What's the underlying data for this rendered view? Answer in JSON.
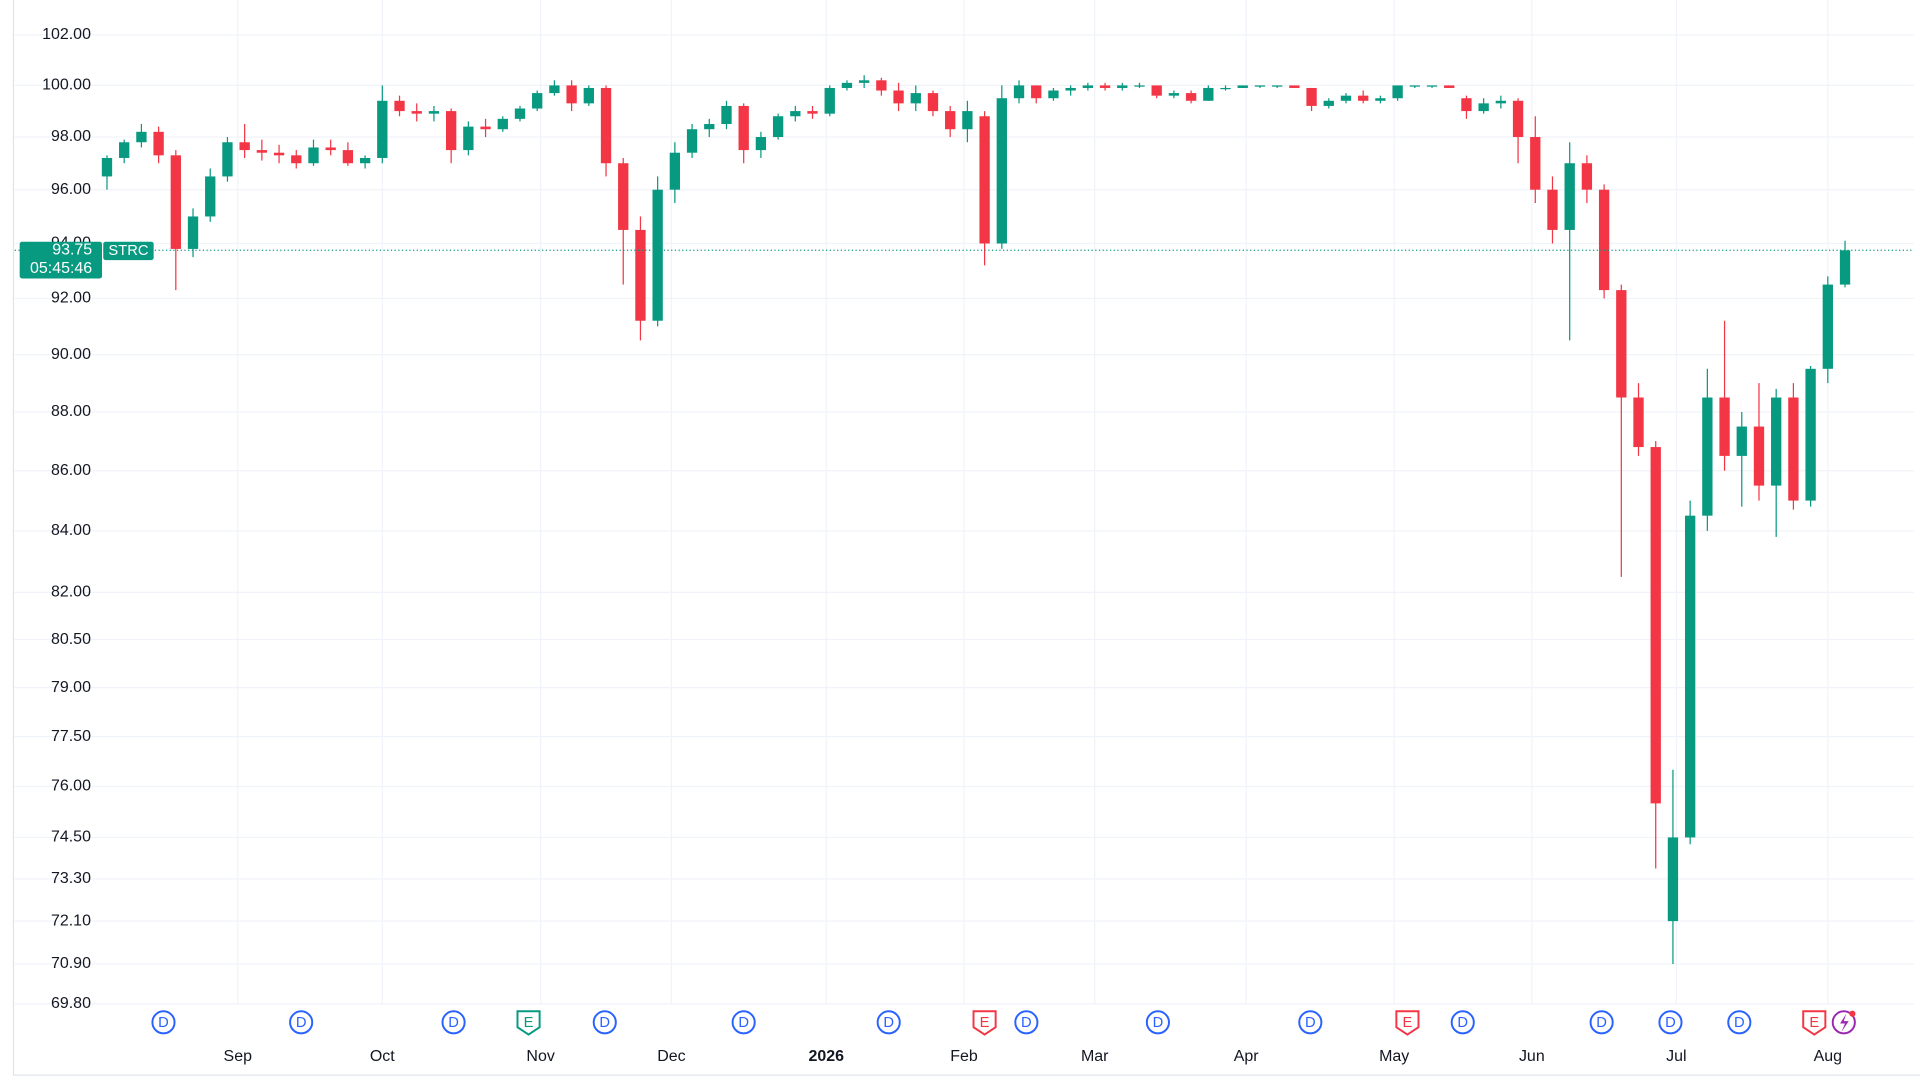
{
  "chart_data": {
    "type": "candlestick",
    "symbol": "STRC",
    "last_price": 93.75,
    "last_price_label": "93.75",
    "countdown": "05:45:46",
    "log_scale": true,
    "grid": true,
    "up_color": "#089981",
    "down_color": "#f23645",
    "ylim": [
      69.8,
      103.4
    ],
    "yticks": [
      {
        "value": 102,
        "label": "102.00"
      },
      {
        "value": 100,
        "label": "100.00"
      },
      {
        "value": 98,
        "label": "98.00"
      },
      {
        "value": 96,
        "label": "96.00"
      },
      {
        "value": 94,
        "label": "94.00"
      },
      {
        "value": 92,
        "label": "92.00"
      },
      {
        "value": 90,
        "label": "90.00"
      },
      {
        "value": 88,
        "label": "88.00"
      },
      {
        "value": 86,
        "label": "86.00"
      },
      {
        "value": 84,
        "label": "84.00"
      },
      {
        "value": 82,
        "label": "82.00"
      },
      {
        "value": 80.5,
        "label": "80.50"
      },
      {
        "value": 79,
        "label": "79.00"
      },
      {
        "value": 77.5,
        "label": "77.50"
      },
      {
        "value": 76,
        "label": "76.00"
      },
      {
        "value": 74.5,
        "label": "74.50"
      },
      {
        "value": 73.3,
        "label": "73.30"
      },
      {
        "value": 72.1,
        "label": "72.10"
      },
      {
        "value": 70.9,
        "label": "70.90"
      },
      {
        "value": 69.8,
        "label": "69.80"
      }
    ],
    "xlim": [
      -13.4,
      262.5
    ],
    "xticks": [
      {
        "value": 19,
        "label": "Sep"
      },
      {
        "value": 40,
        "label": "Oct"
      },
      {
        "value": 63,
        "label": "Nov"
      },
      {
        "value": 82,
        "label": "Dec"
      },
      {
        "value": 104.5,
        "label": "2026"
      },
      {
        "value": 124.5,
        "label": "Feb"
      },
      {
        "value": 143.5,
        "label": "Mar"
      },
      {
        "value": 165.5,
        "label": "Apr"
      },
      {
        "value": 187,
        "label": "May"
      },
      {
        "value": 207,
        "label": "Jun"
      },
      {
        "value": 228,
        "label": "Jul"
      },
      {
        "value": 250,
        "label": "Aug"
      }
    ],
    "x": [
      0,
      2.5,
      5,
      7.5,
      10,
      12.5,
      15,
      17.5,
      20,
      22.5,
      25,
      27.5,
      30,
      32.5,
      35,
      37.5,
      40,
      42.5,
      45,
      47.5,
      50,
      52.5,
      55,
      57.5,
      60,
      62.5,
      65,
      67.5,
      70,
      72.5,
      75,
      77.5,
      80,
      82.5,
      85,
      87.5,
      90,
      92.5,
      95,
      97.5,
      100,
      102.5,
      105,
      107.5,
      110,
      112.5,
      115,
      117.5,
      120,
      122.5,
      125,
      127.5,
      130,
      132.5,
      135,
      137.5,
      140,
      142.5,
      145,
      147.5,
      150,
      152.5,
      155,
      157.5,
      160,
      162.5,
      165,
      167.5,
      170,
      172.5,
      175,
      177.5,
      180,
      182.5,
      185,
      187.5,
      190,
      192.5,
      195,
      197.5,
      200,
      202.5,
      205,
      207.5,
      210,
      212.5,
      215,
      217.5,
      220,
      222.5,
      225,
      227.5,
      230,
      232.5,
      235,
      237.5,
      240,
      242.5,
      245,
      247.5,
      250,
      252.5
    ],
    "ohlc": [
      [
        96.5,
        97.3,
        96.0,
        97.2
      ],
      [
        97.2,
        97.9,
        97.0,
        97.8
      ],
      [
        97.8,
        98.5,
        97.6,
        98.2
      ],
      [
        98.2,
        98.4,
        97.0,
        97.3
      ],
      [
        97.3,
        97.5,
        92.3,
        93.8
      ],
      [
        93.8,
        95.3,
        93.5,
        95.0
      ],
      [
        95.0,
        96.8,
        94.8,
        96.5
      ],
      [
        96.5,
        98.0,
        96.3,
        97.8
      ],
      [
        97.8,
        98.5,
        97.2,
        97.5
      ],
      [
        97.5,
        97.9,
        97.1,
        97.4
      ],
      [
        97.4,
        97.7,
        97.0,
        97.3
      ],
      [
        97.3,
        97.5,
        96.8,
        97.0
      ],
      [
        97.0,
        97.9,
        96.9,
        97.6
      ],
      [
        97.6,
        97.9,
        97.3,
        97.5
      ],
      [
        97.5,
        97.8,
        96.9,
        97.0
      ],
      [
        97.0,
        97.3,
        96.8,
        97.2
      ],
      [
        97.2,
        100.0,
        97.0,
        99.4
      ],
      [
        99.4,
        99.6,
        98.8,
        99.0
      ],
      [
        99.0,
        99.3,
        98.6,
        98.9
      ],
      [
        98.9,
        99.2,
        98.6,
        99.0
      ],
      [
        99.0,
        99.1,
        97.0,
        97.5
      ],
      [
        97.5,
        98.6,
        97.3,
        98.4
      ],
      [
        98.4,
        98.7,
        98.0,
        98.3
      ],
      [
        98.3,
        98.8,
        98.2,
        98.7
      ],
      [
        98.7,
        99.2,
        98.6,
        99.1
      ],
      [
        99.1,
        99.8,
        99.0,
        99.7
      ],
      [
        99.7,
        100.2,
        99.6,
        100.0
      ],
      [
        100.0,
        100.2,
        99.0,
        99.3
      ],
      [
        99.3,
        100.0,
        99.2,
        99.9
      ],
      [
        99.9,
        100.0,
        96.5,
        97.0
      ],
      [
        97.0,
        97.2,
        92.5,
        94.5
      ],
      [
        94.5,
        95.0,
        90.5,
        91.2
      ],
      [
        91.2,
        96.5,
        91.0,
        96.0
      ],
      [
        96.0,
        97.8,
        95.5,
        97.4
      ],
      [
        97.4,
        98.5,
        97.2,
        98.3
      ],
      [
        98.3,
        98.7,
        98.0,
        98.5
      ],
      [
        98.5,
        99.4,
        98.3,
        99.2
      ],
      [
        99.2,
        99.3,
        97.0,
        97.5
      ],
      [
        97.5,
        98.2,
        97.2,
        98.0
      ],
      [
        98.0,
        98.9,
        97.9,
        98.8
      ],
      [
        98.8,
        99.2,
        98.6,
        99.0
      ],
      [
        99.0,
        99.2,
        98.7,
        98.9
      ],
      [
        98.9,
        100.0,
        98.8,
        99.9
      ],
      [
        99.9,
        100.2,
        99.8,
        100.1
      ],
      [
        100.1,
        100.4,
        99.9,
        100.2
      ],
      [
        100.2,
        100.3,
        99.6,
        99.8
      ],
      [
        99.8,
        100.1,
        99.0,
        99.3
      ],
      [
        99.3,
        100.0,
        99.0,
        99.7
      ],
      [
        99.7,
        99.8,
        98.8,
        99.0
      ],
      [
        99.0,
        99.2,
        98.0,
        98.3
      ],
      [
        98.3,
        99.4,
        97.8,
        99.0
      ],
      [
        98.8,
        99.0,
        93.2,
        94.0
      ],
      [
        94.0,
        100.0,
        93.8,
        99.5
      ],
      [
        99.5,
        100.2,
        99.3,
        100.0
      ],
      [
        100.0,
        100.0,
        99.3,
        99.5
      ],
      [
        99.5,
        99.9,
        99.4,
        99.8
      ],
      [
        99.8,
        100.0,
        99.6,
        99.9
      ],
      [
        99.9,
        100.1,
        99.8,
        100.0
      ],
      [
        100.0,
        100.1,
        99.8,
        99.9
      ],
      [
        99.9,
        100.1,
        99.8,
        100.0
      ],
      [
        100.0,
        100.1,
        99.9,
        100.0
      ],
      [
        100.0,
        100.0,
        99.5,
        99.6
      ],
      [
        99.6,
        99.8,
        99.5,
        99.7
      ],
      [
        99.7,
        99.8,
        99.3,
        99.4
      ],
      [
        99.4,
        100.0,
        99.4,
        99.9
      ],
      [
        99.9,
        100.0,
        99.8,
        99.9
      ],
      [
        99.9,
        100.0,
        99.9,
        100.0
      ],
      [
        100.0,
        100.0,
        99.9,
        100.0
      ],
      [
        100.0,
        100.0,
        99.9,
        100.0
      ],
      [
        100.0,
        100.0,
        99.9,
        99.9
      ],
      [
        99.9,
        99.9,
        99.0,
        99.2
      ],
      [
        99.2,
        99.5,
        99.1,
        99.4
      ],
      [
        99.4,
        99.7,
        99.3,
        99.6
      ],
      [
        99.6,
        99.8,
        99.3,
        99.4
      ],
      [
        99.4,
        99.6,
        99.3,
        99.5
      ],
      [
        99.5,
        100.0,
        99.4,
        100.0
      ],
      [
        100.0,
        100.0,
        99.9,
        100.0
      ],
      [
        100.0,
        100.0,
        99.9,
        100.0
      ],
      [
        100.0,
        100.0,
        99.9,
        99.9
      ],
      [
        99.5,
        99.6,
        98.7,
        99.0
      ],
      [
        99.0,
        99.5,
        98.9,
        99.3
      ],
      [
        99.3,
        99.6,
        99.1,
        99.4
      ],
      [
        99.4,
        99.5,
        97.0,
        98.0
      ],
      [
        98.0,
        98.8,
        95.5,
        96.0
      ],
      [
        96.0,
        96.5,
        94.0,
        94.5
      ],
      [
        94.5,
        97.8,
        90.5,
        97.0
      ],
      [
        97.0,
        97.3,
        95.5,
        96.0
      ],
      [
        96.0,
        96.2,
        92.0,
        92.3
      ],
      [
        92.3,
        92.5,
        82.5,
        88.5
      ],
      [
        88.5,
        89.0,
        86.5,
        86.8
      ],
      [
        86.8,
        87.0,
        73.6,
        75.5
      ],
      [
        72.1,
        76.5,
        70.9,
        74.5
      ],
      [
        74.5,
        85.0,
        74.3,
        84.5
      ],
      [
        84.5,
        89.5,
        84.0,
        88.5
      ],
      [
        88.5,
        91.2,
        86.0,
        86.5
      ],
      [
        86.5,
        88.0,
        84.8,
        87.5
      ],
      [
        87.5,
        89.0,
        85.0,
        85.5
      ],
      [
        85.5,
        88.8,
        83.8,
        88.5
      ],
      [
        88.5,
        89.0,
        84.7,
        85.0
      ],
      [
        85.0,
        89.6,
        84.8,
        89.5
      ],
      [
        89.5,
        92.8,
        89.0,
        92.5
      ],
      [
        92.5,
        94.1,
        92.4,
        93.75
      ]
    ],
    "events": [
      {
        "label": "D",
        "kind": "dividend"
      },
      {
        "label": "D",
        "kind": "dividend"
      },
      {
        "label": "D",
        "kind": "dividend"
      },
      {
        "label": "E",
        "kind": "earnings-beat"
      },
      {
        "label": "D",
        "kind": "dividend"
      },
      {
        "label": "D",
        "kind": "dividend"
      },
      {
        "label": "D",
        "kind": "dividend"
      },
      {
        "label": "E",
        "kind": "earnings-miss"
      },
      {
        "label": "D",
        "kind": "dividend"
      },
      {
        "label": "D",
        "kind": "dividend"
      },
      {
        "label": "D",
        "kind": "dividend"
      },
      {
        "label": "E",
        "kind": "earnings-miss"
      },
      {
        "label": "D",
        "kind": "dividend"
      },
      {
        "label": "D",
        "kind": "dividend"
      },
      {
        "label": "D",
        "kind": "dividend"
      },
      {
        "label": "D",
        "kind": "dividend"
      },
      {
        "label": "E",
        "kind": "earnings-miss"
      }
    ]
  }
}
